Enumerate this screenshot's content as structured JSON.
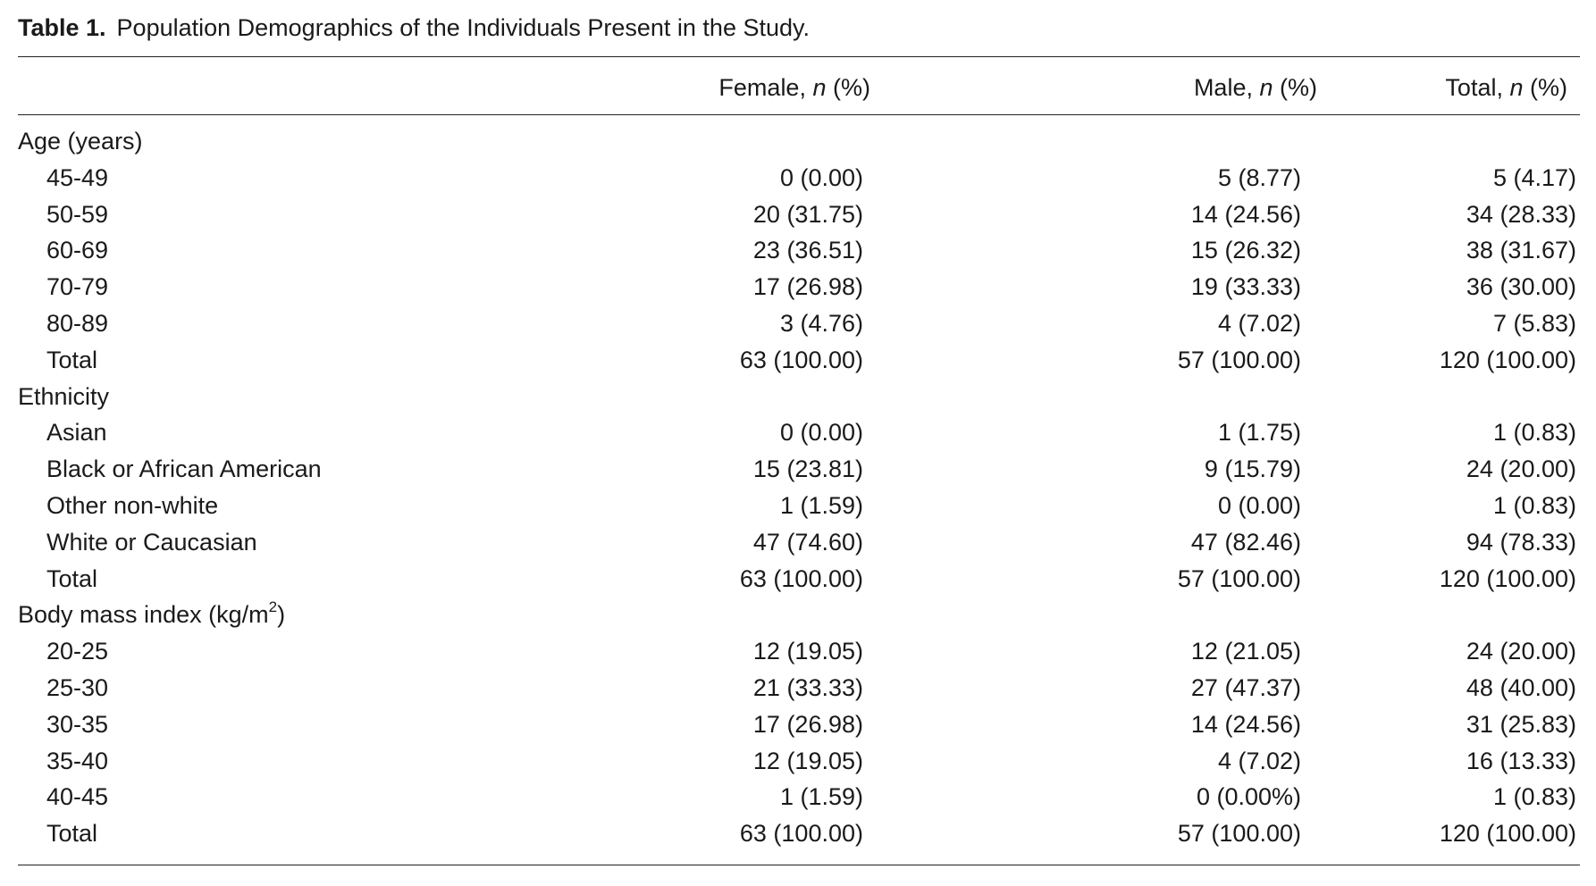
{
  "caption": {
    "label": "Table 1.",
    "text": "Population Demographics of the Individuals Present in the Study."
  },
  "headers": {
    "col1_prefix": "Female, ",
    "col2_prefix": "Male, ",
    "col3_prefix": "Total, ",
    "n_symbol": "n",
    "pct_suffix": " (%)"
  },
  "sections": [
    {
      "title": "Age (years)",
      "rows": [
        {
          "label": "45-49",
          "female": "0 (0.00)",
          "male": "5 (8.77)",
          "total": "5 (4.17)"
        },
        {
          "label": "50-59",
          "female": "20 (31.75)",
          "male": "14 (24.56)",
          "total": "34 (28.33)"
        },
        {
          "label": "60-69",
          "female": "23 (36.51)",
          "male": "15 (26.32)",
          "total": "38 (31.67)"
        },
        {
          "label": "70-79",
          "female": "17 (26.98)",
          "male": "19 (33.33)",
          "total": "36 (30.00)"
        },
        {
          "label": "80-89",
          "female": "3 (4.76)",
          "male": "4 (7.02)",
          "total": "7 (5.83)"
        },
        {
          "label": "Total",
          "female": "63 (100.00)",
          "male": "57 (100.00)",
          "total": "120 (100.00)"
        }
      ]
    },
    {
      "title": "Ethnicity",
      "rows": [
        {
          "label": "Asian",
          "female": "0 (0.00)",
          "male": "1 (1.75)",
          "total": "1 (0.83)"
        },
        {
          "label": "Black or African American",
          "female": "15 (23.81)",
          "male": "9 (15.79)",
          "total": "24 (20.00)"
        },
        {
          "label": "Other non-white",
          "female": "1 (1.59)",
          "male": "0 (0.00)",
          "total": "1 (0.83)"
        },
        {
          "label": "White or Caucasian",
          "female": "47 (74.60)",
          "male": "47 (82.46)",
          "total": "94 (78.33)"
        },
        {
          "label": "Total",
          "female": "63 (100.00)",
          "male": "57 (100.00)",
          "total": "120 (100.00)"
        }
      ]
    },
    {
      "title": "Body mass index (kg/m",
      "title_sup": "2",
      "title_end": ")",
      "rows": [
        {
          "label": "20-25",
          "female": "12 (19.05)",
          "male": "12 (21.05)",
          "total": "24 (20.00)"
        },
        {
          "label": "25-30",
          "female": "21 (33.33)",
          "male": "27 (47.37)",
          "total": "48 (40.00)"
        },
        {
          "label": "30-35",
          "female": "17 (26.98)",
          "male": "14 (24.56)",
          "total": "31 (25.83)"
        },
        {
          "label": "35-40",
          "female": "12 (19.05)",
          "male": "4 (7.02)",
          "total": "16 (13.33)"
        },
        {
          "label": "40-45",
          "female": "1 (1.59)",
          "male": "0 (0.00%)",
          "total": "1 (0.83)"
        },
        {
          "label": "Total",
          "female": "63 (100.00)",
          "male": "57 (100.00)",
          "total": "120 (100.00)"
        }
      ]
    }
  ]
}
